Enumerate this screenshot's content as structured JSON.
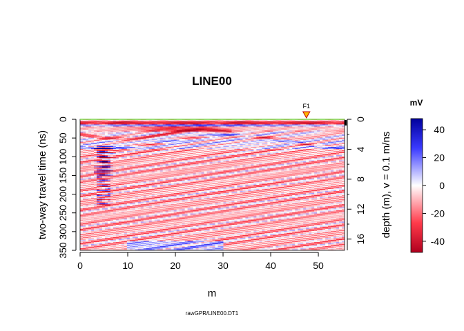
{
  "chart_data": {
    "type": "heatmap",
    "title": "LINE00",
    "xlabel": "m",
    "ylabel_left": "two-way travel time (ns)",
    "ylabel_right": "depth (m),   v = 0.1 m/ns",
    "footer": "rawGPR/LINE00.DT1",
    "x_range": [
      0,
      55.5
    ],
    "y_range": [
      0,
      350
    ],
    "depth_range": [
      0,
      17.5
    ],
    "x_ticks": [
      0,
      10,
      20,
      30,
      40,
      50
    ],
    "y_ticks": [
      0,
      50,
      100,
      150,
      200,
      250,
      300,
      350
    ],
    "depth_ticks": [
      0,
      4,
      8,
      12,
      16
    ],
    "fiducial": {
      "label": "F1",
      "x": 47.5
    },
    "colorbar": {
      "title": "mV",
      "range": [
        -48,
        48
      ],
      "ticks": [
        40,
        20,
        0,
        -20,
        -40
      ],
      "colors": {
        "negative": "#b0001e",
        "zero": "#ffffff",
        "positive": "#00009c"
      }
    },
    "colors": {
      "ground_line": "#7cd44a",
      "fiducial_fill": "#ffb800",
      "fiducial_stroke": "#c00000"
    }
  }
}
